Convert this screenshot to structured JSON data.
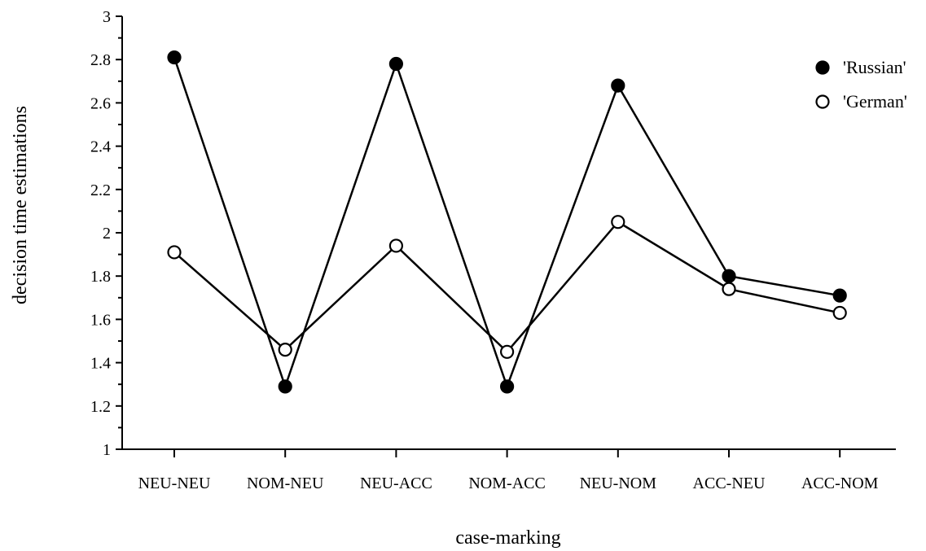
{
  "chart_data": {
    "type": "line",
    "title": "",
    "xlabel": "case-marking",
    "ylabel": "decision time estimations",
    "categories": [
      "NEU-NEU",
      "NOM-NEU",
      "NEU-ACC",
      "NOM-ACC",
      "NEU-NOM",
      "ACC-NEU",
      "ACC-NOM"
    ],
    "ylim": [
      1,
      3
    ],
    "yticks": [
      "1",
      "1.2",
      "1.4",
      "1.6",
      "1.8",
      "2",
      "2.2",
      "2.4",
      "2.6",
      "2.8",
      "3"
    ],
    "grid": false,
    "legend_position": "top-right",
    "series": [
      {
        "name": "'Russian'",
        "marker": "filled-circle",
        "color": "#000000",
        "values": [
          2.81,
          1.29,
          2.78,
          1.29,
          2.68,
          1.8,
          1.71
        ]
      },
      {
        "name": "'German'",
        "marker": "open-circle",
        "color": "#000000",
        "values": [
          1.91,
          1.46,
          1.94,
          1.45,
          2.05,
          1.74,
          1.63
        ]
      }
    ]
  }
}
